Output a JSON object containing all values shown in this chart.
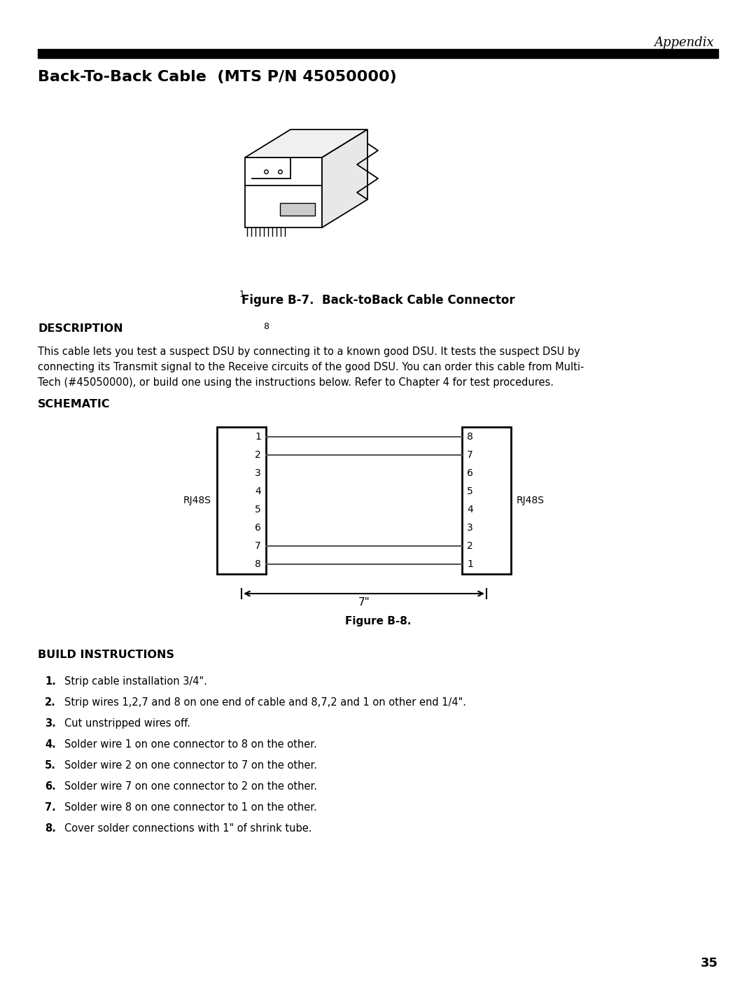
{
  "page_title": "Back-To-Back Cable  (MTS P/N 45050000)",
  "appendix_label": "Appendix",
  "figure_b7_caption": "Figure B-7.  Back-toBack Cable Connector",
  "description_heading": "DESCRIPTION",
  "description_text": "This cable lets you test a suspect DSU by connecting it to a known good DSU. It tests the suspect DSU by\nconnecting its Transmit signal to the Receive circuits of the good DSU. You can order this cable from Multi-\nTech (#45050000), or build one using the instructions below. Refer to Chapter 4 for test procedures.",
  "schematic_heading": "SCHEMATIC",
  "left_connector_label": "RJ48S",
  "right_connector_label": "RJ48S",
  "left_pins": [
    "1",
    "2",
    "3",
    "4",
    "5",
    "6",
    "7",
    "8"
  ],
  "right_pins": [
    "8",
    "7",
    "6",
    "5",
    "4",
    "3",
    "2",
    "1"
  ],
  "dimension_label": "7\"",
  "figure_b8_caption": "Figure B-8.",
  "build_heading": "BUILD INSTRUCTIONS",
  "build_items": [
    {
      "num": "1.",
      "text": "Strip cable installation 3/4\"."
    },
    {
      "num": "2.",
      "text": "Strip wires 1,2,7 and 8 on one end of cable and 8,7,2 and 1 on other end 1/4\"."
    },
    {
      "num": "3.",
      "text": "Cut unstripped wires off."
    },
    {
      "num": "4.",
      "text": "Solder wire 1 on one connector to 8 on the other."
    },
    {
      "num": "5.",
      "text": "Solder wire 2 on one connector to 7 on the other."
    },
    {
      "num": "6.",
      "text": "Solder wire 7 on one connector to 2 on the other."
    },
    {
      "num": "7.",
      "text": "Solder wire 8 on one connector to 1 on the other."
    },
    {
      "num": "8.",
      "text": "Cover solder connections with 1\" of shrink tube."
    }
  ],
  "page_number": "35",
  "bg_color": "#ffffff",
  "text_color": "#000000"
}
